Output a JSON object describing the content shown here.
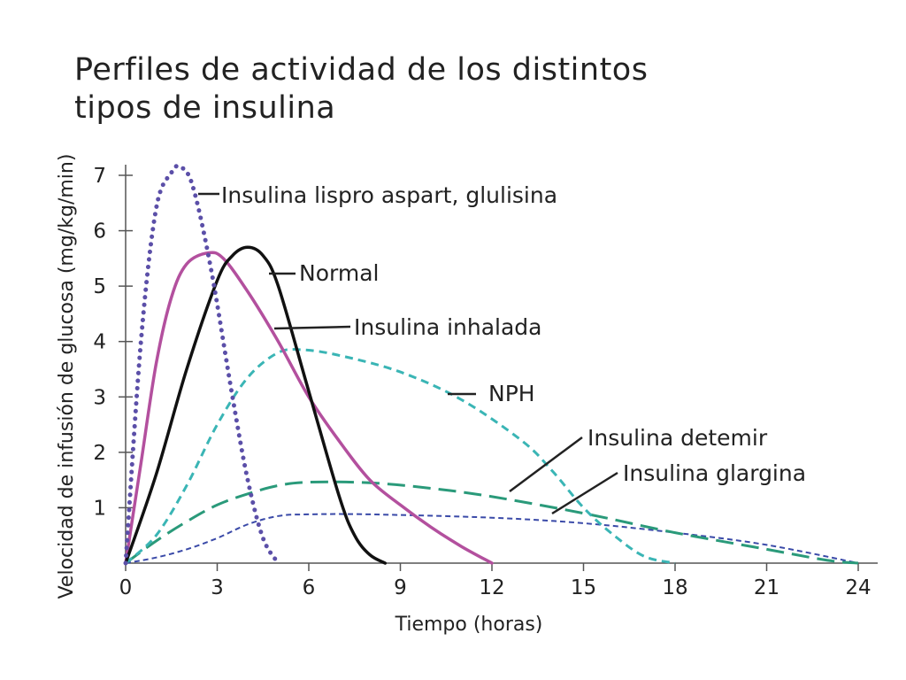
{
  "chart_data": {
    "type": "line",
    "title": "Perfiles de actividad de los distintos tipos de insulina",
    "title_lines": [
      "Perfiles de actividad de los distintos",
      "tipos de insulina"
    ],
    "xlabel": "Tiempo (horas)",
    "ylabel": "Velocidad de infusión de glucosa (mg/kg/min)",
    "xlim": [
      0,
      24
    ],
    "ylim": [
      0,
      7
    ],
    "xticks": [
      0,
      3,
      6,
      9,
      12,
      15,
      18,
      21,
      24
    ],
    "yticks": [
      1,
      2,
      3,
      4,
      5,
      6,
      7
    ],
    "grid": false,
    "series": [
      {
        "name": "Insulina lispro aspart, glulisina",
        "color": "#5b4fa8",
        "style": "dotted",
        "x": [
          0,
          0.5,
          1,
          1.5,
          1.8,
          2.2,
          2.8,
          3.5,
          4,
          4.5,
          5
        ],
        "y": [
          0,
          4.0,
          6.4,
          7.05,
          7.15,
          6.8,
          5.3,
          3.0,
          1.5,
          0.45,
          0
        ]
      },
      {
        "name": "Normal",
        "color": "#111111",
        "style": "solid",
        "x": [
          0,
          1,
          2,
          3,
          3.5,
          4,
          4.5,
          5,
          6,
          7,
          7.5,
          8,
          8.5
        ],
        "y": [
          0,
          1.6,
          3.5,
          5.1,
          5.55,
          5.7,
          5.55,
          5.0,
          3.1,
          1.2,
          0.5,
          0.15,
          0
        ]
      },
      {
        "name": "Insulina inhalada",
        "color": "#b3509e",
        "style": "solid",
        "x": [
          0,
          0.5,
          1,
          1.5,
          2,
          2.7,
          3.2,
          4,
          5,
          6,
          7,
          8,
          9,
          10,
          11,
          12
        ],
        "y": [
          0,
          1.8,
          3.6,
          4.8,
          5.4,
          5.6,
          5.5,
          4.9,
          4.0,
          3.0,
          2.2,
          1.5,
          1.05,
          0.65,
          0.3,
          0
        ]
      },
      {
        "name": "NPH",
        "color": "#3ab5b5",
        "style": "dashed",
        "x": [
          0,
          1,
          2,
          3,
          4,
          5,
          5.8,
          7,
          9,
          11,
          13,
          14,
          15,
          16,
          17,
          18
        ],
        "y": [
          0,
          0.5,
          1.4,
          2.5,
          3.35,
          3.8,
          3.85,
          3.75,
          3.45,
          2.95,
          2.2,
          1.65,
          1.0,
          0.5,
          0.12,
          0
        ]
      },
      {
        "name": "Insulina detemir",
        "color": "#2a9a7a",
        "style": "longdash",
        "x": [
          0,
          1,
          2,
          3,
          4,
          5,
          6,
          8,
          10,
          12,
          15,
          18,
          21,
          23,
          24
        ],
        "y": [
          0,
          0.4,
          0.75,
          1.05,
          1.25,
          1.4,
          1.46,
          1.45,
          1.35,
          1.2,
          0.9,
          0.55,
          0.25,
          0.05,
          0
        ]
      },
      {
        "name": "Insulina glargina",
        "color": "#3a4aa8",
        "style": "shortdash",
        "x": [
          0,
          1,
          2,
          3,
          4,
          5,
          6,
          8,
          12,
          15,
          18,
          21,
          24
        ],
        "y": [
          0,
          0.1,
          0.25,
          0.45,
          0.7,
          0.85,
          0.88,
          0.88,
          0.82,
          0.72,
          0.55,
          0.33,
          0
        ]
      }
    ]
  }
}
